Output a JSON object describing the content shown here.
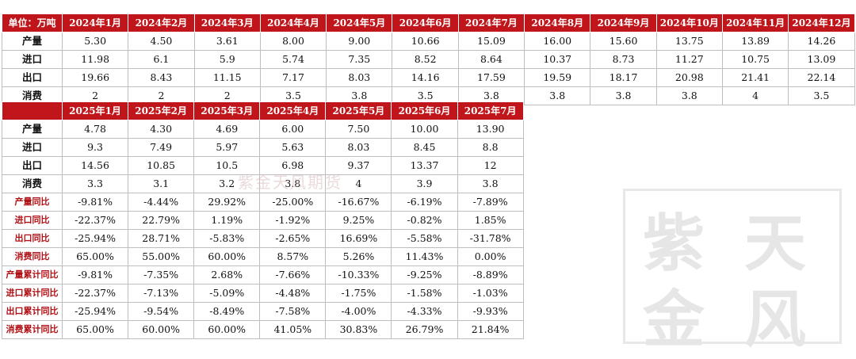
{
  "table1": {
    "header": [
      "单位：万吨",
      "2024年1月",
      "2024年2月",
      "2024年3月",
      "2024年4月",
      "2024年5月",
      "2024年6月",
      "2024年7月",
      "2024年8月",
      "2024年9月",
      "2024年10月",
      "2024年11月",
      "2024年12月"
    ],
    "rows": [
      {
        "label": "产量",
        "cells": [
          "5.30",
          "4.50",
          "3.61",
          "8.00",
          "9.00",
          "10.66",
          "15.09",
          "16.00",
          "15.60",
          "13.75",
          "13.89",
          "14.26"
        ]
      },
      {
        "label": "进口",
        "cells": [
          "11.98",
          "6.1",
          "5.9",
          "5.74",
          "7.35",
          "8.52",
          "8.64",
          "10.37",
          "8.73",
          "11.27",
          "10.75",
          "13.09"
        ]
      },
      {
        "label": "出口",
        "cells": [
          "19.66",
          "8.43",
          "11.15",
          "7.17",
          "8.03",
          "14.16",
          "17.59",
          "19.59",
          "18.17",
          "20.98",
          "21.41",
          "22.14"
        ]
      },
      {
        "label": "消费",
        "cells": [
          "2",
          "2",
          "2",
          "3.5",
          "3.8",
          "3.5",
          "3.8",
          "3.8",
          "3.8",
          "3.8",
          "4",
          "3.5"
        ]
      }
    ]
  },
  "table2": {
    "header": [
      "",
      "2025年1月",
      "2025年2月",
      "2025年3月",
      "2025年4月",
      "2025年5月",
      "2025年6月",
      "2025年7月"
    ],
    "rows": [
      {
        "label": "产量",
        "style": "lbl",
        "cells": [
          "4.78",
          "4.30",
          "4.69",
          "6.00",
          "7.50",
          "10.00",
          "13.90"
        ]
      },
      {
        "label": "进口",
        "style": "lbl",
        "cells": [
          "9.3",
          "7.49",
          "5.97",
          "5.63",
          "8.03",
          "8.45",
          "8.8"
        ]
      },
      {
        "label": "出口",
        "style": "lbl",
        "cells": [
          "14.56",
          "10.85",
          "10.5",
          "6.98",
          "9.37",
          "13.37",
          "12"
        ]
      },
      {
        "label": "消费",
        "style": "lbl",
        "cells": [
          "3.3",
          "3.1",
          "3.2",
          "3.8",
          "4",
          "3.9",
          "3.8"
        ]
      },
      {
        "label": "产量同比",
        "style": "red",
        "cells": [
          "-9.81%",
          "-4.44%",
          "29.92%",
          "-25.00%",
          "-16.67%",
          "-6.19%",
          "-7.89%"
        ]
      },
      {
        "label": "进口同比",
        "style": "red",
        "cells": [
          "-22.37%",
          "22.79%",
          "1.19%",
          "-1.92%",
          "9.25%",
          "-0.82%",
          "1.85%"
        ]
      },
      {
        "label": "出口同比",
        "style": "red",
        "cells": [
          "-25.94%",
          "28.71%",
          "-5.83%",
          "-2.65%",
          "16.69%",
          "-5.58%",
          "-31.78%"
        ]
      },
      {
        "label": "消费同比",
        "style": "red",
        "cells": [
          "65.00%",
          "55.00%",
          "60.00%",
          "8.57%",
          "5.26%",
          "11.43%",
          "0.00%"
        ]
      },
      {
        "label": "产量累计同比",
        "style": "red",
        "cells": [
          "-9.81%",
          "-7.35%",
          "2.68%",
          "-7.66%",
          "-10.33%",
          "-9.25%",
          "-8.89%"
        ]
      },
      {
        "label": "进口累计同比",
        "style": "red",
        "cells": [
          "-22.37%",
          "-7.13%",
          "-5.09%",
          "-4.48%",
          "-1.75%",
          "-1.58%",
          "-1.03%"
        ]
      },
      {
        "label": "出口累计同比",
        "style": "red",
        "cells": [
          "-25.94%",
          "-9.54%",
          "-8.49%",
          "-7.58%",
          "-4.00%",
          "-4.33%",
          "-9.93%"
        ]
      },
      {
        "label": "消费累计同比",
        "style": "red",
        "cells": [
          "65.00%",
          "60.00%",
          "60.00%",
          "41.05%",
          "30.83%",
          "26.79%",
          "21.84%"
        ]
      }
    ]
  },
  "watermark": {
    "text": "紫金天风期货",
    "seal_glyphs": [
      "紫",
      "天",
      "金",
      "风"
    ]
  },
  "colors": {
    "header_bg": "#c0161b",
    "label_red": "#b01015"
  }
}
